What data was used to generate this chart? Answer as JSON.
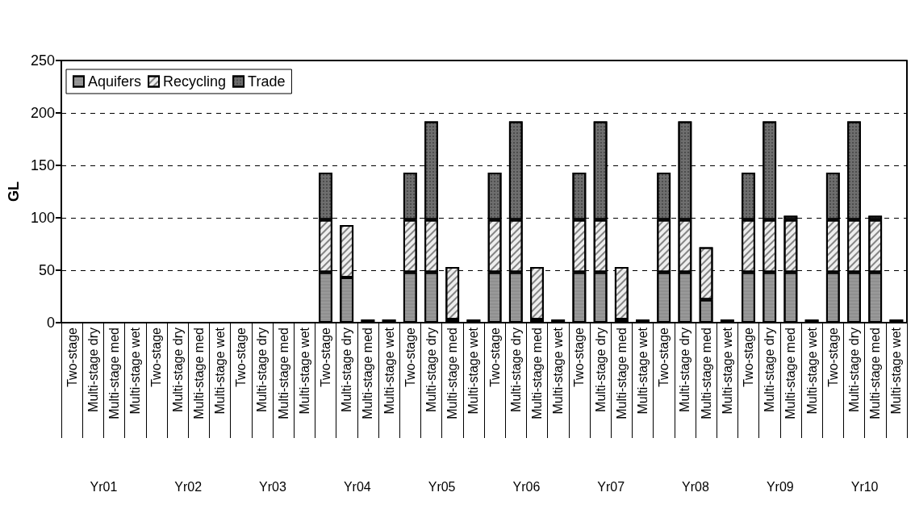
{
  "chart_data": {
    "type": "bar",
    "stacked": true,
    "ylabel": "GL",
    "categories": [
      "Two-stage",
      "Multi-stage dry",
      "Multi-stage med",
      "Multi-stage wet",
      "Two-stage",
      "Multi-stage dry",
      "Multi-stage med",
      "Multi-stage wet",
      "Two-stage",
      "Multi-stage dry",
      "Multi-stage med",
      "Multi-stage wet",
      "Two-stage",
      "Multi-stage dry",
      "Multi-stage med",
      "Multi-stage wet",
      "Two-stage",
      "Multi-stage dry",
      "Multi-stage med",
      "Multi-stage wet",
      "Two-stage",
      "Multi-stage dry",
      "Multi-stage med",
      "Multi-stage wet",
      "Two-stage",
      "Multi-stage dry",
      "Multi-stage med",
      "Multi-stage wet",
      "Two-stage",
      "Multi-stage dry",
      "Multi-stage med",
      "Multi-stage wet",
      "Two-stage",
      "Multi-stage dry",
      "Multi-stage med",
      "Multi-stage wet",
      "Two-stage",
      "Multi-stage dry",
      "Multi-stage med",
      "Multi-stage wet"
    ],
    "series": [
      {
        "name": "Aquifers",
        "color": "#999999",
        "values": [
          null,
          null,
          null,
          null,
          null,
          null,
          null,
          null,
          null,
          null,
          null,
          null,
          48,
          43,
          3,
          3,
          48,
          48,
          3,
          3,
          48,
          48,
          3,
          3,
          48,
          48,
          3,
          3,
          48,
          48,
          22,
          3,
          48,
          48,
          48,
          3,
          48,
          48,
          48,
          3
        ]
      },
      {
        "name": "Recycling",
        "color": "#eeeeee",
        "values": [
          null,
          null,
          null,
          null,
          null,
          null,
          null,
          null,
          null,
          null,
          null,
          null,
          50,
          50,
          null,
          null,
          50,
          50,
          50,
          null,
          50,
          50,
          50,
          null,
          50,
          50,
          50,
          null,
          50,
          50,
          50,
          null,
          50,
          50,
          50,
          null,
          50,
          50,
          50,
          null
        ]
      },
      {
        "name": "Trade",
        "color": "#6e6e6e",
        "values": [
          null,
          null,
          null,
          null,
          null,
          null,
          null,
          null,
          null,
          null,
          null,
          null,
          45,
          null,
          null,
          null,
          45,
          94,
          null,
          null,
          45,
          94,
          null,
          null,
          45,
          94,
          null,
          null,
          45,
          94,
          null,
          null,
          45,
          94,
          4,
          null,
          45,
          94,
          4,
          null
        ]
      }
    ],
    "annotations": [
      "Yr01",
      "Yr02",
      "Yr03",
      "Yr04",
      "Yr05",
      "Yr06",
      "Yr07",
      "Yr08",
      "Yr09",
      "Yr10"
    ],
    "ylim": [
      0,
      250
    ],
    "yticks": [
      0,
      50,
      100,
      150,
      200,
      250
    ],
    "grid": "y",
    "legend": "top left"
  }
}
